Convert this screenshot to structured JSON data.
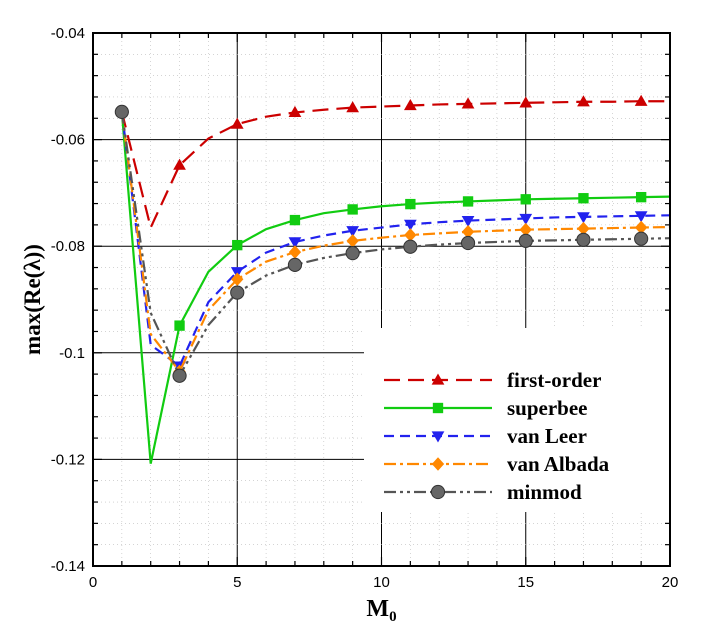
{
  "chart_data": {
    "type": "line",
    "xlabel": "M",
    "xlabel_sub": "0",
    "ylabel": "max(Re(λ))",
    "xlim": [
      0,
      20
    ],
    "ylim": [
      -0.14,
      -0.04
    ],
    "x_ticks": [
      0,
      5,
      10,
      15,
      20
    ],
    "x_tick_labels": [
      "0",
      "5",
      "10",
      "15",
      "20"
    ],
    "y_ticks": [
      -0.14,
      -0.12,
      -0.1,
      -0.08,
      -0.06,
      -0.04
    ],
    "y_tick_labels": [
      "-0.14",
      "-0.12",
      "-0.1",
      "-0.08",
      "-0.06",
      "-0.04"
    ],
    "grid": true,
    "legend_position": "bottom-right",
    "series": [
      {
        "name": "first-order",
        "color": "#cc0000",
        "dash": "long-dash",
        "marker": "triangle-up",
        "x": [
          1,
          2,
          3,
          4,
          5,
          6,
          7,
          8,
          9,
          10,
          11,
          12,
          13,
          14,
          15,
          16,
          17,
          18,
          19,
          20
        ],
        "y": [
          -0.0548,
          -0.0765,
          -0.0648,
          -0.0598,
          -0.0571,
          -0.0557,
          -0.0549,
          -0.0544,
          -0.054,
          -0.0538,
          -0.0536,
          -0.0534,
          -0.0533,
          -0.0532,
          -0.0531,
          -0.053,
          -0.0529,
          -0.0529,
          -0.0528,
          -0.0528
        ],
        "marker_x": [
          3,
          5,
          7,
          9,
          11,
          13,
          15,
          17,
          19
        ]
      },
      {
        "name": "superbee",
        "color": "#11cc11",
        "dash": "solid",
        "marker": "square",
        "x": [
          1,
          2,
          3,
          4,
          5,
          6,
          7,
          8,
          9,
          10,
          11,
          12,
          13,
          14,
          15,
          16,
          17,
          18,
          19,
          20
        ],
        "y": [
          -0.0548,
          -0.1208,
          -0.0949,
          -0.0848,
          -0.0798,
          -0.0768,
          -0.0751,
          -0.0738,
          -0.0731,
          -0.0725,
          -0.0721,
          -0.0718,
          -0.0716,
          -0.0714,
          -0.0712,
          -0.0711,
          -0.071,
          -0.0709,
          -0.0708,
          -0.0707
        ],
        "marker_x": [
          3,
          5,
          7,
          9,
          11,
          13,
          15,
          17,
          19
        ]
      },
      {
        "name": "van Leer",
        "color": "#2222ee",
        "dash": "dash",
        "marker": "triangle-down",
        "x": [
          1,
          2,
          3,
          4,
          5,
          6,
          7,
          8,
          9,
          10,
          11,
          12,
          13,
          14,
          15,
          16,
          17,
          18,
          19,
          20
        ],
        "y": [
          -0.0548,
          -0.0985,
          -0.1025,
          -0.0905,
          -0.0848,
          -0.0812,
          -0.0792,
          -0.078,
          -0.0771,
          -0.0765,
          -0.0759,
          -0.0755,
          -0.0752,
          -0.075,
          -0.0748,
          -0.0746,
          -0.0745,
          -0.0744,
          -0.0743,
          -0.0742
        ],
        "marker_x": [
          3,
          5,
          7,
          9,
          11,
          13,
          15,
          17,
          19
        ]
      },
      {
        "name": "van Albada",
        "color": "#ff8800",
        "dash": "dash-dot",
        "marker": "diamond",
        "x": [
          1,
          2,
          3,
          4,
          5,
          6,
          7,
          8,
          9,
          10,
          11,
          12,
          13,
          14,
          15,
          16,
          17,
          18,
          19,
          20
        ],
        "y": [
          -0.0548,
          -0.0965,
          -0.1035,
          -0.092,
          -0.0862,
          -0.0829,
          -0.0811,
          -0.0799,
          -0.079,
          -0.0784,
          -0.0779,
          -0.0776,
          -0.0773,
          -0.0771,
          -0.0769,
          -0.0768,
          -0.0767,
          -0.0766,
          -0.0765,
          -0.0764
        ],
        "marker_x": [
          3,
          5,
          7,
          9,
          11,
          13,
          15,
          17,
          19
        ]
      },
      {
        "name": "minmod",
        "color": "#555555",
        "dash": "dash-dot-dot",
        "marker": "circle",
        "marker_fill": "#666666",
        "x": [
          1,
          2,
          3,
          4,
          5,
          6,
          7,
          8,
          9,
          10,
          11,
          12,
          13,
          14,
          15,
          16,
          17,
          18,
          19,
          20
        ],
        "y": [
          -0.0548,
          -0.0925,
          -0.1043,
          -0.0948,
          -0.0887,
          -0.0855,
          -0.0835,
          -0.0822,
          -0.0813,
          -0.0806,
          -0.0801,
          -0.0797,
          -0.0794,
          -0.0792,
          -0.079,
          -0.0789,
          -0.0788,
          -0.0787,
          -0.0786,
          -0.0785
        ],
        "marker_x": [
          1,
          3,
          5,
          7,
          9,
          11,
          13,
          15,
          17,
          19
        ]
      }
    ]
  }
}
